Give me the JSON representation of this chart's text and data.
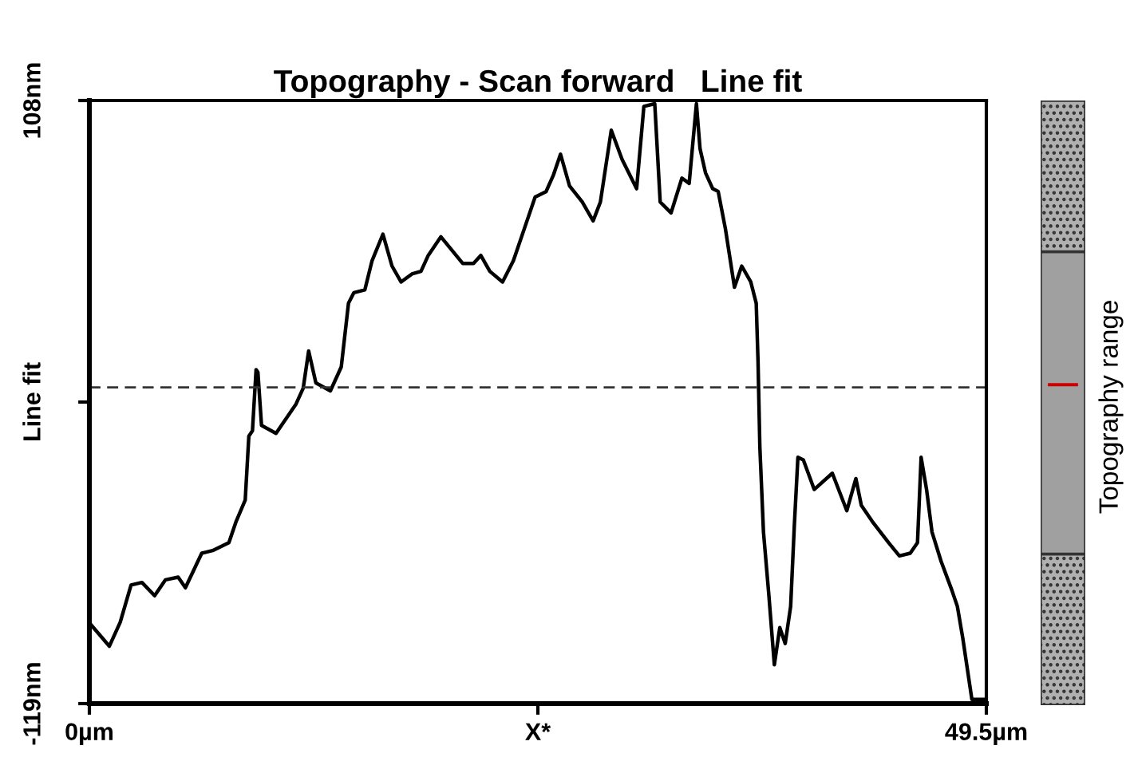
{
  "chart_data": {
    "type": "line",
    "title": "Topography - Scan forward   Line fit",
    "annotations": [
      "Topography range"
    ],
    "xlim": [
      0,
      49.5
    ],
    "xticks": [
      {
        "value": 0,
        "label": "0µm"
      },
      {
        "value": 24.75,
        "label": "X*"
      },
      {
        "value": 49.5,
        "label": "49.5µm"
      }
    ],
    "ylim": [
      -119,
      108
    ],
    "yticks": [
      {
        "value": -119,
        "label": "-119nm"
      },
      {
        "value": -5.5,
        "label": "Line fit"
      },
      {
        "value": 108,
        "label": "108nm"
      }
    ],
    "grid": false,
    "legend": false,
    "marker": "none",
    "line_style": "solid",
    "ref_lines": [
      {
        "axis": "y",
        "value": 0,
        "label": null,
        "color": "#333333",
        "line_style": "dashed"
      }
    ],
    "series": [
      {
        "color": "#000000",
        "x": [
          0.1,
          1.1,
          1.7,
          2.3,
          2.9,
          3.6,
          4.2,
          4.9,
          5.3,
          6.2,
          6.8,
          7.7,
          8.1,
          8.6,
          8.8,
          9.0,
          9.2,
          9.3,
          9.5,
          10.3,
          11.4,
          11.8,
          12.1,
          12.5,
          13.3,
          13.9,
          14.3,
          14.6,
          15.2,
          15.6,
          16.2,
          16.7,
          17.2,
          17.8,
          18.3,
          18.7,
          19.4,
          20.6,
          21.2,
          21.6,
          22.1,
          22.8,
          23.4,
          24.0,
          24.6,
          25.2,
          25.6,
          26.0,
          26.5,
          27.2,
          27.8,
          28.2,
          28.8,
          29.4,
          30.2,
          30.6,
          31.2,
          31.5,
          32.1,
          32.7,
          33.1,
          33.5,
          33.7,
          34.0,
          34.4,
          34.7,
          35.1,
          35.6,
          36.0,
          36.5,
          36.8,
          36.9,
          37.0,
          37.2,
          37.5,
          37.8,
          38.1,
          38.4,
          38.7,
          38.9,
          39.1,
          39.4,
          40.0,
          41.0,
          41.8,
          42.3,
          42.6,
          43.2,
          44.1,
          44.7,
          45.3,
          45.7,
          45.9,
          46.2,
          46.5,
          47.0,
          47.6,
          47.9,
          48.2,
          48.7,
          49.4
        ],
        "values": [
          -89.4,
          -97.4,
          -88.4,
          -74.4,
          -73.4,
          -78.4,
          -72.4,
          -71.4,
          -75.4,
          -62.4,
          -61.4,
          -58.4,
          -50.4,
          -42.4,
          -18.3,
          -16.3,
          6.7,
          5.7,
          -14.3,
          -17.3,
          -6.3,
          -0.3,
          13.7,
          1.7,
          -1.3,
          7.7,
          31.7,
          35.7,
          36.7,
          47.7,
          57.7,
          45.7,
          39.7,
          42.7,
          43.7,
          49.7,
          56.7,
          46.7,
          46.7,
          49.7,
          43.7,
          39.7,
          47.7,
          59.7,
          71.7,
          73.7,
          79.8,
          87.8,
          75.8,
          69.8,
          62.7,
          69.8,
          96.8,
          85.8,
          74.8,
          105.8,
          106.8,
          69.8,
          65.7,
          78.8,
          76.8,
          106.8,
          89.8,
          80.8,
          74.8,
          73.8,
          59.7,
          37.7,
          45.7,
          39.7,
          31.7,
          9.7,
          -22.3,
          -54.4,
          -78.4,
          -104.4,
          -90.4,
          -96.4,
          -82.4,
          -52.4,
          -26.3,
          -27.3,
          -38.4,
          -32.3,
          -46.4,
          -34.3,
          -44.4,
          -50.4,
          -58.4,
          -63.4,
          -62.4,
          -58.4,
          -26.3,
          -38.4,
          -54.4,
          -65.4,
          -76.4,
          -82.4,
          -94.4,
          -117.4,
          -117.4
        ]
      }
    ]
  }
}
